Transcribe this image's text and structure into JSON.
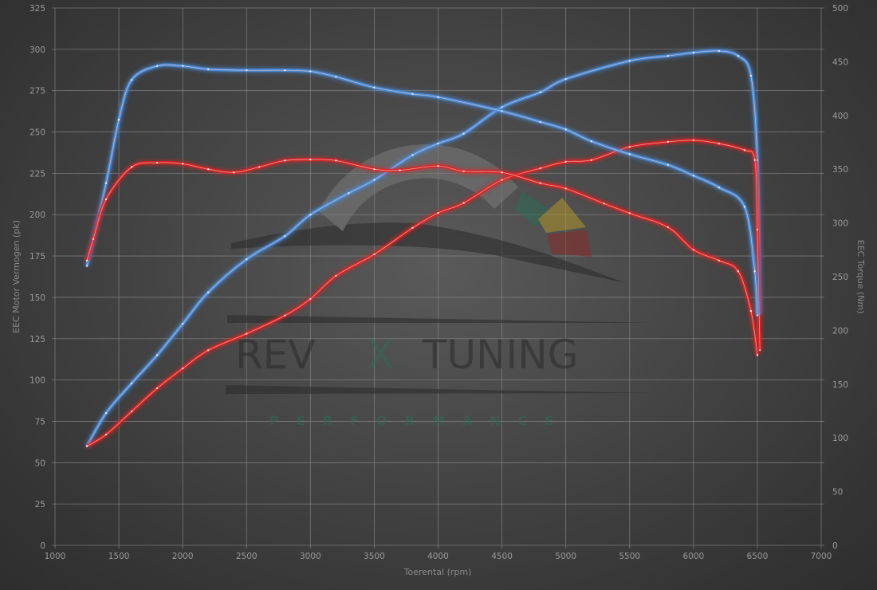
{
  "chart_data": {
    "type": "line",
    "xlabel": "Toerental (rpm)",
    "ylabel": "EEC Motor Vermogen (pk)",
    "y2label": "EEC Torque (Nm)",
    "xlim": [
      1000,
      7000
    ],
    "ylim": [
      0,
      325
    ],
    "y2lim": [
      0,
      500
    ],
    "xticks": [
      1000,
      1500,
      2000,
      2500,
      3000,
      3500,
      4000,
      4500,
      5000,
      5500,
      6000,
      6500,
      7000
    ],
    "yticks": [
      0,
      25,
      50,
      75,
      100,
      125,
      150,
      175,
      200,
      225,
      250,
      275,
      300,
      325
    ],
    "y2ticks": [
      0,
      50,
      100,
      150,
      200,
      250,
      300,
      350,
      400,
      450,
      500
    ],
    "grid": true,
    "watermark": {
      "text": [
        "REV",
        "X",
        "TUNING"
      ],
      "subtext": "PERFORMANCE"
    },
    "colors": {
      "tuned": "#4a90e2",
      "stock": "#e02020"
    },
    "series": [
      {
        "axis": "left",
        "color": "#4a90e2",
        "x": [
          1250,
          1400,
          1600,
          1800,
          2000,
          2200,
          2500,
          2800,
          3000,
          3300,
          3500,
          3800,
          4000,
          4200,
          4500,
          4800,
          5000,
          5500,
          5800,
          6000,
          6200,
          6350,
          6450,
          6500,
          6520
        ],
        "y": [
          60,
          80,
          98,
          115,
          134,
          153,
          173,
          187,
          200,
          213,
          221,
          236,
          243,
          249,
          265,
          274,
          282,
          293,
          296,
          298,
          299,
          296,
          284,
          233,
          140
        ]
      },
      {
        "axis": "left",
        "color": "#e02020",
        "x": [
          1250,
          1400,
          1600,
          1800,
          2000,
          2200,
          2500,
          2800,
          3000,
          3200,
          3500,
          3800,
          4000,
          4200,
          4500,
          4800,
          5000,
          5200,
          5500,
          5800,
          6000,
          6200,
          6400,
          6480,
          6500,
          6520
        ],
        "y": [
          60,
          67,
          81,
          95,
          107,
          118,
          128,
          139,
          149,
          163,
          176,
          192,
          201,
          207,
          221,
          228,
          232,
          233,
          241,
          244,
          245,
          243,
          239,
          233,
          191,
          118
        ]
      },
      {
        "axis": "right",
        "color": "#4a90e2",
        "x": [
          1250,
          1400,
          1500,
          1600,
          1800,
          2000,
          2200,
          2500,
          2800,
          3000,
          3200,
          3500,
          3800,
          4000,
          4500,
          4800,
          5000,
          5200,
          5500,
          5800,
          6000,
          6200,
          6400,
          6480,
          6500
        ],
        "y": [
          260,
          337,
          396,
          433,
          446,
          446,
          443,
          442,
          442,
          441,
          436,
          426,
          420,
          417,
          404,
          394,
          387,
          376,
          364,
          354,
          344,
          333,
          315,
          255,
          214
        ]
      },
      {
        "axis": "right",
        "color": "#e02020",
        "x": [
          1250,
          1300,
          1400,
          1600,
          1800,
          2000,
          2200,
          2400,
          2600,
          2800,
          3000,
          3200,
          3500,
          3700,
          4000,
          4200,
          4500,
          4800,
          5000,
          5300,
          5500,
          5800,
          6000,
          6200,
          6350,
          6450,
          6500
        ],
        "y": [
          265,
          285,
          322,
          352,
          356,
          355,
          350,
          347,
          352,
          358,
          359,
          358,
          350,
          349,
          353,
          348,
          347,
          337,
          332,
          318,
          309,
          296,
          275,
          265,
          255,
          218,
          177
        ]
      }
    ]
  }
}
